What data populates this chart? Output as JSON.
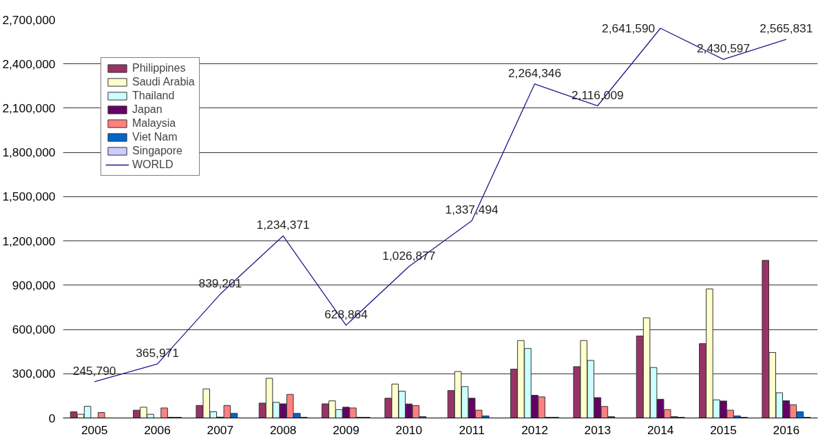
{
  "chart_data": {
    "type": "bar",
    "categories": [
      "2005",
      "2006",
      "2007",
      "2008",
      "2009",
      "2010",
      "2011",
      "2012",
      "2013",
      "2014",
      "2015",
      "2016"
    ],
    "ylim": [
      0,
      2700000
    ],
    "yticks": [
      {
        "value": 0,
        "label": "0"
      },
      {
        "value": 300000,
        "label": "300,000"
      },
      {
        "value": 600000,
        "label": "600,000"
      },
      {
        "value": 900000,
        "label": "900,000"
      },
      {
        "value": 1200000,
        "label": "1,200,000"
      },
      {
        "value": 1500000,
        "label": "1,500,000"
      },
      {
        "value": 1800000,
        "label": "1,800,000"
      },
      {
        "value": 2100000,
        "label": "2,100,000"
      },
      {
        "value": 2400000,
        "label": "2,400,000"
      },
      {
        "value": 2700000,
        "label": "2,700,000"
      }
    ],
    "grid": "y",
    "legend": "top left",
    "series": [
      {
        "name": "Philippines",
        "color": "#993366",
        "values": [
          42000,
          53000,
          85000,
          101000,
          96000,
          134000,
          186000,
          331000,
          348000,
          556000,
          504000,
          1068000
        ]
      },
      {
        "name": "Saudi Arabia",
        "color": "#ffffcc",
        "values": [
          25000,
          73000,
          197000,
          269000,
          116000,
          230000,
          315000,
          525000,
          525000,
          679000,
          875000,
          444000
        ]
      },
      {
        "name": "Thailand",
        "color": "#ccffff",
        "values": [
          79000,
          25000,
          42000,
          106000,
          57000,
          182000,
          213000,
          471000,
          390000,
          342000,
          123000,
          171000
        ]
      },
      {
        "name": "Japan",
        "color": "#660066",
        "values": [
          null,
          null,
          6000,
          96000,
          73000,
          95000,
          134000,
          154000,
          138000,
          127000,
          115000,
          117000
        ]
      },
      {
        "name": "Malaysia",
        "color": "#ff8080",
        "values": [
          37000,
          68000,
          85000,
          160000,
          68000,
          84000,
          53000,
          143000,
          78000,
          57000,
          53000,
          90000
        ]
      },
      {
        "name": "Viet Nam",
        "color": "#0066cc",
        "values": [
          null,
          5000,
          31000,
          31000,
          5000,
          9000,
          14000,
          5000,
          9000,
          9000,
          14000,
          42000
        ]
      },
      {
        "name": "Singapore",
        "color": "#ccccff",
        "values": [
          null,
          5000,
          null,
          5000,
          5000,
          null,
          null,
          5000,
          null,
          5000,
          5000,
          5000
        ]
      },
      {
        "name": "WORLD",
        "type": "line",
        "color": "#1a1a8c",
        "values": [
          245790,
          365971,
          839201,
          1234371,
          628864,
          1026877,
          1337494,
          2264346,
          2116009,
          2641590,
          2430597,
          2565831
        ],
        "value_labels": [
          "245,790",
          "365,971",
          "839,201",
          "1,234,371",
          "628,864",
          "1,026,877",
          "1,337,494",
          "2,264,346",
          "2,116,009",
          "2,641,590",
          "2,430,597",
          "2,565,831"
        ]
      }
    ]
  }
}
